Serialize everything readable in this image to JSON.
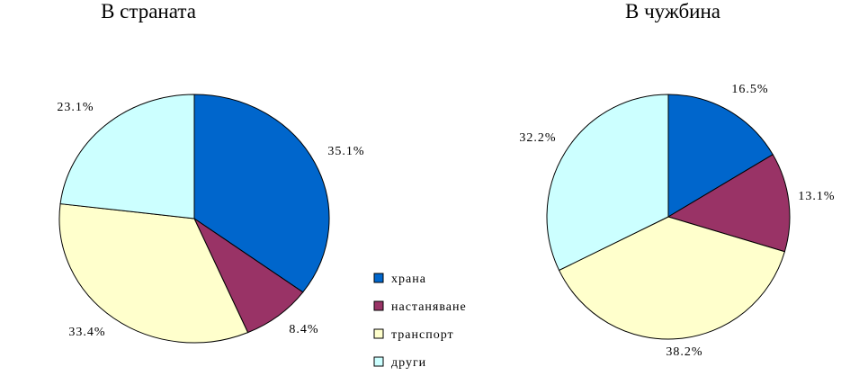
{
  "chart_data": [
    {
      "type": "pie",
      "title": "В страната",
      "categories": [
        "храна",
        "настаняване",
        "транспорт",
        "други"
      ],
      "values": [
        35.1,
        8.4,
        33.4,
        23.1
      ],
      "labels": [
        "35.1%",
        "8.4%",
        "33.4%",
        "23.1%"
      ]
    },
    {
      "type": "pie",
      "title": "В чужбина",
      "categories": [
        "храна",
        "настаняване",
        "транспорт",
        "други"
      ],
      "values": [
        16.5,
        13.1,
        38.2,
        32.2
      ],
      "labels": [
        "16.5%",
        "13.1%",
        "38.2%",
        "32.2%"
      ]
    }
  ],
  "legend": {
    "placement": "between-charts-bottom",
    "items": [
      {
        "label": "храна",
        "color": "#0066cc"
      },
      {
        "label": "настаняване",
        "color": "#993366"
      },
      {
        "label": "транспорт",
        "color": "#ffffcc"
      },
      {
        "label": "други",
        "color": "#ccffff"
      }
    ]
  },
  "colors": [
    "#0066cc",
    "#993366",
    "#ffffcc",
    "#ccffff"
  ]
}
